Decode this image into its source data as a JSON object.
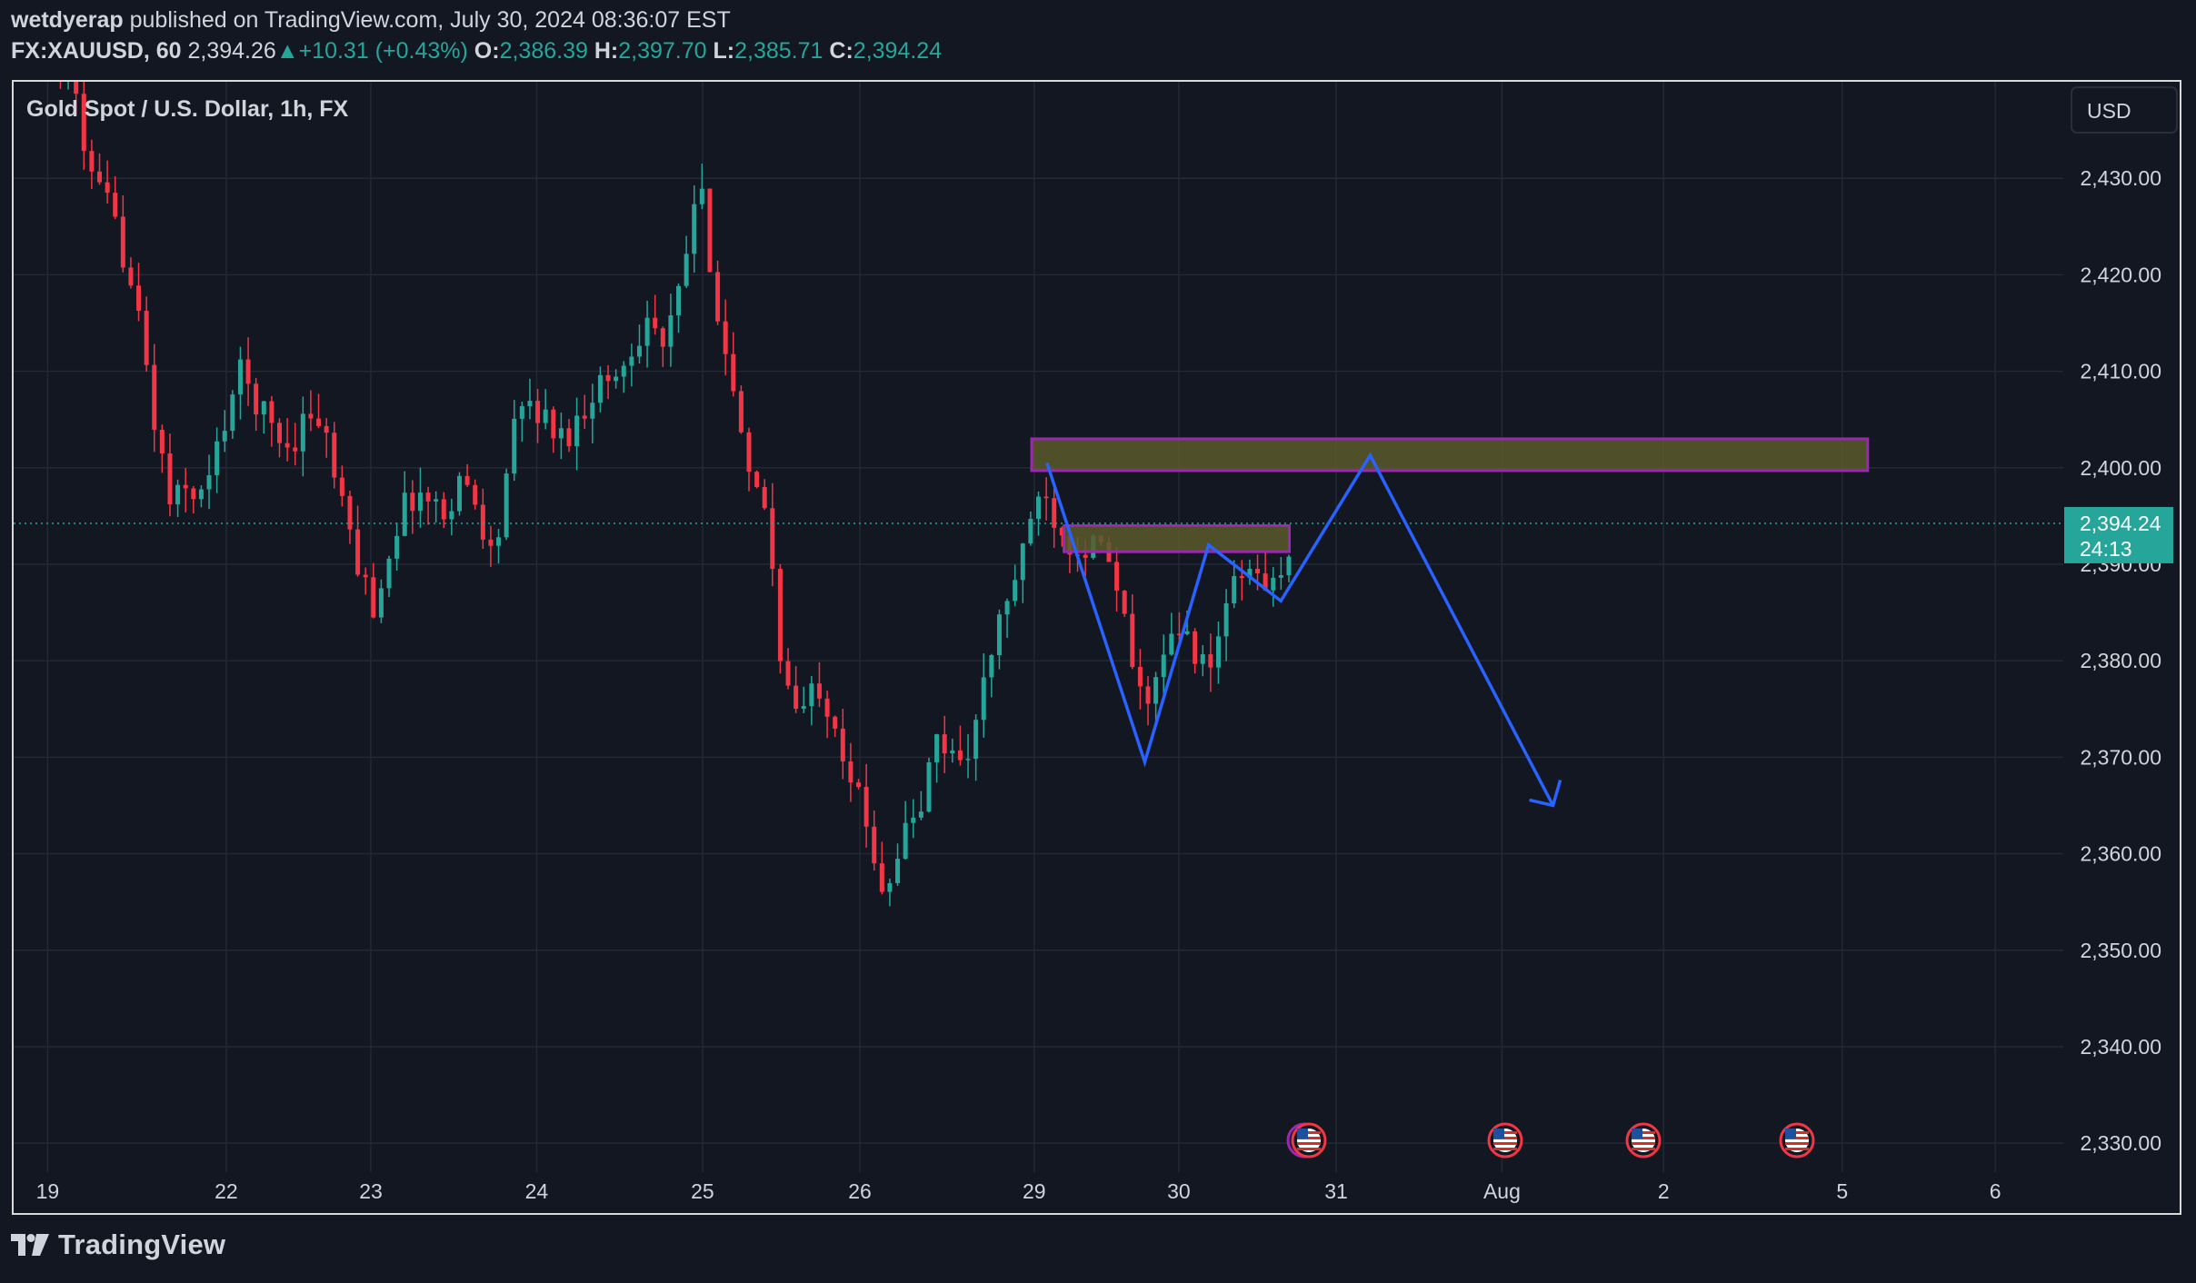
{
  "header": {
    "author": "wetdyerap",
    "published_text": "published on TradingView.com, July 30, 2024 08:36:07 EST",
    "symbol": "FX:XAUUSD, 60",
    "last": "2,394.26",
    "change_arrow": "▲",
    "change": "+10.31 (+0.43%)",
    "open_label": "O:",
    "open": "2,386.39",
    "high_label": "H:",
    "high": "2,397.70",
    "low_label": "L:",
    "low": "2,385.71",
    "close_label": "C:",
    "close": "2,394.24"
  },
  "chart_title": "Gold Spot / U.S. Dollar, 1h, FX",
  "currency_button": "USD",
  "price_label": {
    "value": "2,394.24",
    "countdown": "24:13"
  },
  "footer": {
    "brand": "TradingView",
    "logo_icon": "tradingview-logo-icon"
  },
  "colors": {
    "bg": "#131722",
    "up": "#26a69a",
    "down": "#f23645",
    "drawing": "#2962ff",
    "zone_border": "#9c27b0",
    "zone_fill": "#5a5a2a"
  },
  "event_icons": [
    "us-flag-icon",
    "us-flag-icon",
    "us-flag-icon",
    "us-flag-icon"
  ],
  "chart_data": {
    "type": "candlestick",
    "title": "Gold Spot / U.S. Dollar, 1h, FX",
    "y_ticks": [
      2330,
      2340,
      2350,
      2360,
      2370,
      2380,
      2390,
      2400,
      2410,
      2420,
      2430
    ],
    "y_tick_labels": [
      "2,330.00",
      "2,340.00",
      "2,350.00",
      "2,360.00",
      "2,370.00",
      "2,380.00",
      "2,390.00",
      "2,400.00",
      "2,410.00",
      "2,420.00",
      "2,430.00"
    ],
    "ylim": [
      2327,
      2440
    ],
    "x_ticks": [
      {
        "label": "19",
        "t": 0
      },
      {
        "label": "22",
        "t": 21
      },
      {
        "label": "23",
        "t": 38
      },
      {
        "label": "24",
        "t": 57.5
      },
      {
        "label": "25",
        "t": 77
      },
      {
        "label": "26",
        "t": 95.5
      },
      {
        "label": "29",
        "t": 116
      },
      {
        "label": "30",
        "t": 133
      },
      {
        "label": "31",
        "t": 151.5
      },
      {
        "label": "Aug",
        "t": 171
      },
      {
        "label": "2",
        "t": 190
      },
      {
        "label": "5",
        "t": 211
      },
      {
        "label": "6",
        "t": 229
      }
    ],
    "xlim": [
      -4,
      237
    ],
    "grid": true,
    "current_price": 2394.24,
    "path_points": [
      [
        1.5,
        2443
      ],
      [
        3.5,
        2438
      ],
      [
        5,
        2430
      ],
      [
        7,
        2427
      ],
      [
        9,
        2422
      ],
      [
        11,
        2414
      ],
      [
        12.5,
        2405
      ],
      [
        14.5,
        2396
      ],
      [
        16.5,
        2398
      ],
      [
        18.5,
        2397
      ],
      [
        20.5,
        2404
      ],
      [
        22.5,
        2410
      ],
      [
        24.5,
        2407
      ],
      [
        26.5,
        2404
      ],
      [
        28.5,
        2402
      ],
      [
        30.5,
        2406
      ],
      [
        32.5,
        2404
      ],
      [
        34.5,
        2396
      ],
      [
        36.5,
        2390
      ],
      [
        38.5,
        2385
      ],
      [
        40.5,
        2393
      ],
      [
        42.5,
        2397
      ],
      [
        44.5,
        2397
      ],
      [
        46.5,
        2395
      ],
      [
        48.5,
        2399
      ],
      [
        50.5,
        2396
      ],
      [
        52.5,
        2390
      ],
      [
        54.5,
        2403
      ],
      [
        56.5,
        2407
      ],
      [
        58.5,
        2405
      ],
      [
        60.5,
        2403
      ],
      [
        62.5,
        2405
      ],
      [
        64.5,
        2409
      ],
      [
        66.5,
        2409
      ],
      [
        68.5,
        2412
      ],
      [
        70.5,
        2416
      ],
      [
        72.5,
        2412
      ],
      [
        74.5,
        2419
      ],
      [
        76.5,
        2430
      ],
      [
        78.5,
        2418
      ],
      [
        80.5,
        2408
      ],
      [
        82.5,
        2398
      ],
      [
        84.5,
        2396
      ],
      [
        86.5,
        2378
      ],
      [
        88.5,
        2374
      ],
      [
        90.5,
        2378
      ],
      [
        92.5,
        2374
      ],
      [
        94.5,
        2368
      ],
      [
        96.5,
        2362
      ],
      [
        98.5,
        2356
      ],
      [
        100.5,
        2362
      ],
      [
        102.5,
        2364
      ],
      [
        104.5,
        2372
      ],
      [
        106.5,
        2370
      ],
      [
        108.5,
        2371
      ],
      [
        110.5,
        2379
      ],
      [
        112.5,
        2386
      ],
      [
        114.5,
        2390
      ],
      [
        116.5,
        2398
      ],
      [
        118.5,
        2395
      ],
      [
        120.5,
        2392
      ],
      [
        122.5,
        2392
      ],
      [
        124.5,
        2391
      ],
      [
        126.5,
        2384
      ],
      [
        128.5,
        2376
      ],
      [
        130.5,
        2378
      ],
      [
        132.5,
        2383
      ],
      [
        134.5,
        2382
      ],
      [
        136.5,
        2378
      ],
      [
        138.5,
        2386
      ],
      [
        140.5,
        2389
      ],
      [
        142.5,
        2389
      ],
      [
        144.5,
        2387
      ],
      [
        146.5,
        2394
      ]
    ],
    "annotations": [
      {
        "type": "zone",
        "t0": 115.7,
        "t1": 214,
        "y0": 2399.7,
        "y1": 2403
      },
      {
        "type": "zone",
        "t0": 119.5,
        "t1": 146,
        "y0": 2391.3,
        "y1": 2394
      },
      {
        "type": "polyline",
        "points": [
          [
            117.5,
            2400.5
          ],
          [
            129,
            2369.5
          ],
          [
            136.5,
            2392
          ],
          [
            145,
            2386.2
          ],
          [
            155.5,
            2401.3
          ],
          [
            177,
            2365
          ]
        ]
      }
    ]
  }
}
